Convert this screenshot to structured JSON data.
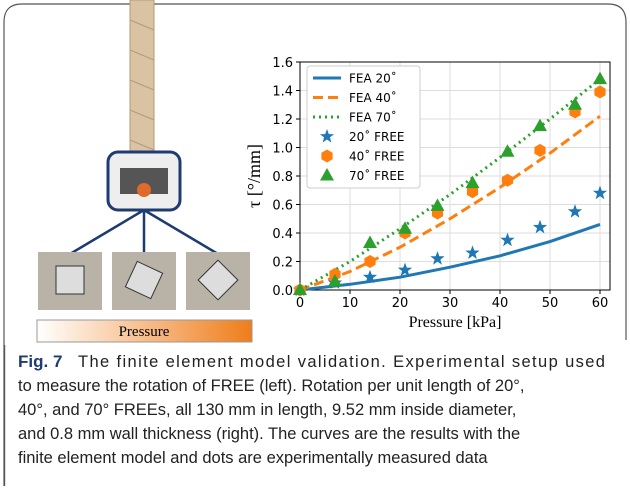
{
  "chart_data": {
    "type": "line",
    "xlabel": "Pressure [kPa]",
    "ylabel": "τ [°/mm]",
    "xlim": [
      0,
      62
    ],
    "ylim": [
      0,
      1.6
    ],
    "xticks": [
      0,
      10,
      20,
      30,
      40,
      50,
      60
    ],
    "yticks": [
      {
        "value": 0,
        "label": "0.0"
      },
      0.2,
      0.4,
      0.6,
      0.8,
      {
        "value": 1,
        "label": "1.0"
      },
      1.2,
      1.4,
      1.6
    ],
    "legend": "upper left",
    "series": [
      {
        "name": "FEA 20˚",
        "kind": "line",
        "dash": "solid",
        "color": "#1f77b4",
        "x": [
          0,
          10,
          20,
          30,
          40,
          50,
          60
        ],
        "values": [
          0,
          0.04,
          0.09,
          0.16,
          0.24,
          0.34,
          0.46
        ]
      },
      {
        "name": "FEA 40˚",
        "kind": "line",
        "dash": "dashed",
        "color": "#ff7f0e",
        "x": [
          0,
          10,
          20,
          30,
          40,
          50,
          60
        ],
        "values": [
          0,
          0.13,
          0.3,
          0.5,
          0.72,
          0.96,
          1.22
        ]
      },
      {
        "name": "FEA 70˚",
        "kind": "line",
        "dash": "dotted",
        "color": "#2ca02c",
        "x": [
          0,
          10,
          20,
          30,
          40,
          50,
          60
        ],
        "values": [
          0,
          0.2,
          0.43,
          0.67,
          0.93,
          1.2,
          1.48
        ]
      },
      {
        "name": "20˚ FREE",
        "kind": "scatter",
        "marker": "star",
        "color": "#1f77b4",
        "x": [
          0,
          7,
          14,
          21,
          27.5,
          34.5,
          41.5,
          48,
          55,
          60
        ],
        "values": [
          0,
          0.05,
          0.09,
          0.14,
          0.22,
          0.26,
          0.35,
          0.44,
          0.55,
          0.68
        ]
      },
      {
        "name": "40˚ FREE",
        "kind": "scatter",
        "marker": "hexagon",
        "color": "#ff7f0e",
        "x": [
          0,
          7,
          14,
          21,
          27.5,
          34.5,
          41.5,
          48,
          55,
          60
        ],
        "values": [
          0,
          0.11,
          0.2,
          0.4,
          0.54,
          0.69,
          0.77,
          0.98,
          1.25,
          1.39
        ]
      },
      {
        "name": "70˚ FREE",
        "kind": "scatter",
        "marker": "triangle",
        "color": "#2ca02c",
        "x": [
          0,
          7,
          14,
          21,
          27.5,
          34.5,
          41.5,
          48,
          55,
          60
        ],
        "values": [
          0,
          0.06,
          0.33,
          0.43,
          0.59,
          0.75,
          0.97,
          1.15,
          1.3,
          1.48
        ]
      }
    ]
  },
  "photo": {
    "bar_label": "Pressure"
  },
  "caption": {
    "label": "Fig. 7",
    "lines": [
      "The finite element model validation. Experimental setup used",
      "to measure the rotation of FREE (left). Rotation per unit length of 20°,",
      "40°, and 70° FREEs, all 130 mm in length, 9.52 mm inside diameter,",
      "and 0.8 mm wall thickness (right). The curves are the results with the",
      "finite element model and dots are experimentally measured data"
    ]
  }
}
